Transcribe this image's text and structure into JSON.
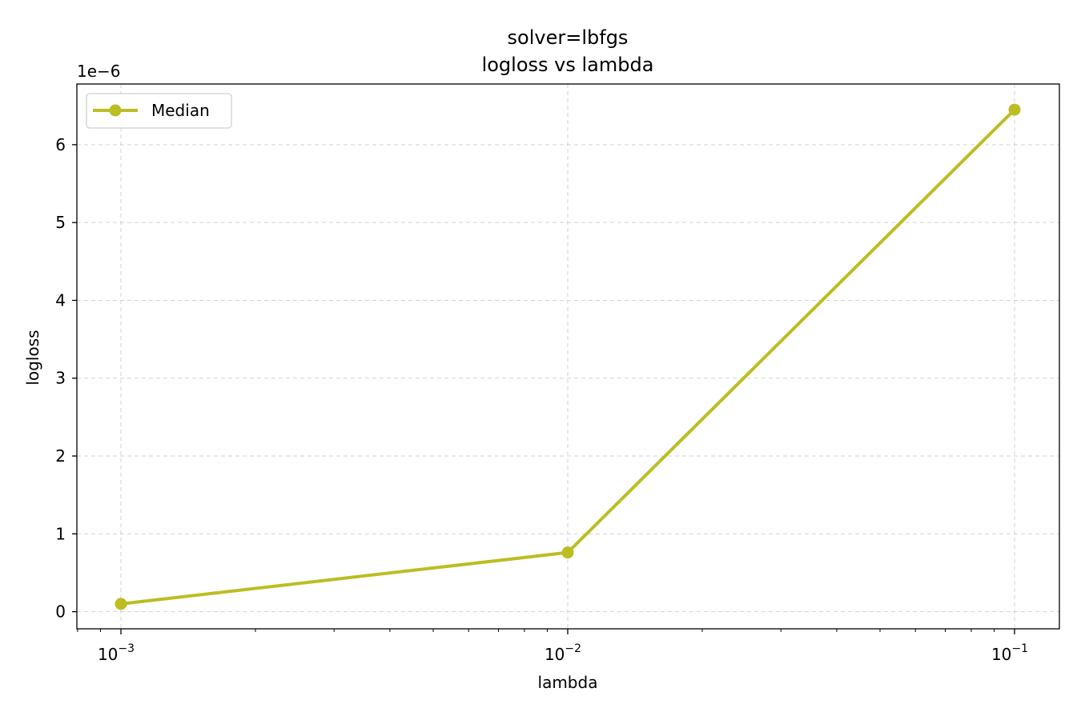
{
  "chart_data": {
    "type": "line",
    "title_lines": [
      "solver=lbfgs",
      "logloss vs lambda"
    ],
    "xlabel": "lambda",
    "ylabel": "logloss",
    "x_scale": "log",
    "x_ticks": [
      {
        "base": "10",
        "exp": "−3",
        "value": 0.001
      },
      {
        "base": "10",
        "exp": "−2",
        "value": 0.01
      },
      {
        "base": "10",
        "exp": "−1",
        "value": 0.1
      }
    ],
    "y_offset_label": "1e−6",
    "y_ticks": [
      0,
      1,
      2,
      3,
      4,
      5,
      6
    ],
    "ylim": [
      -0.22,
      6.78
    ],
    "grid": true,
    "legend_position": "upper-left",
    "series": [
      {
        "name": "Median",
        "color": "#bcbd22",
        "marker": "circle",
        "x": [
          0.001,
          0.01,
          0.1
        ],
        "y": [
          0.1,
          0.76,
          6.45
        ]
      }
    ]
  }
}
